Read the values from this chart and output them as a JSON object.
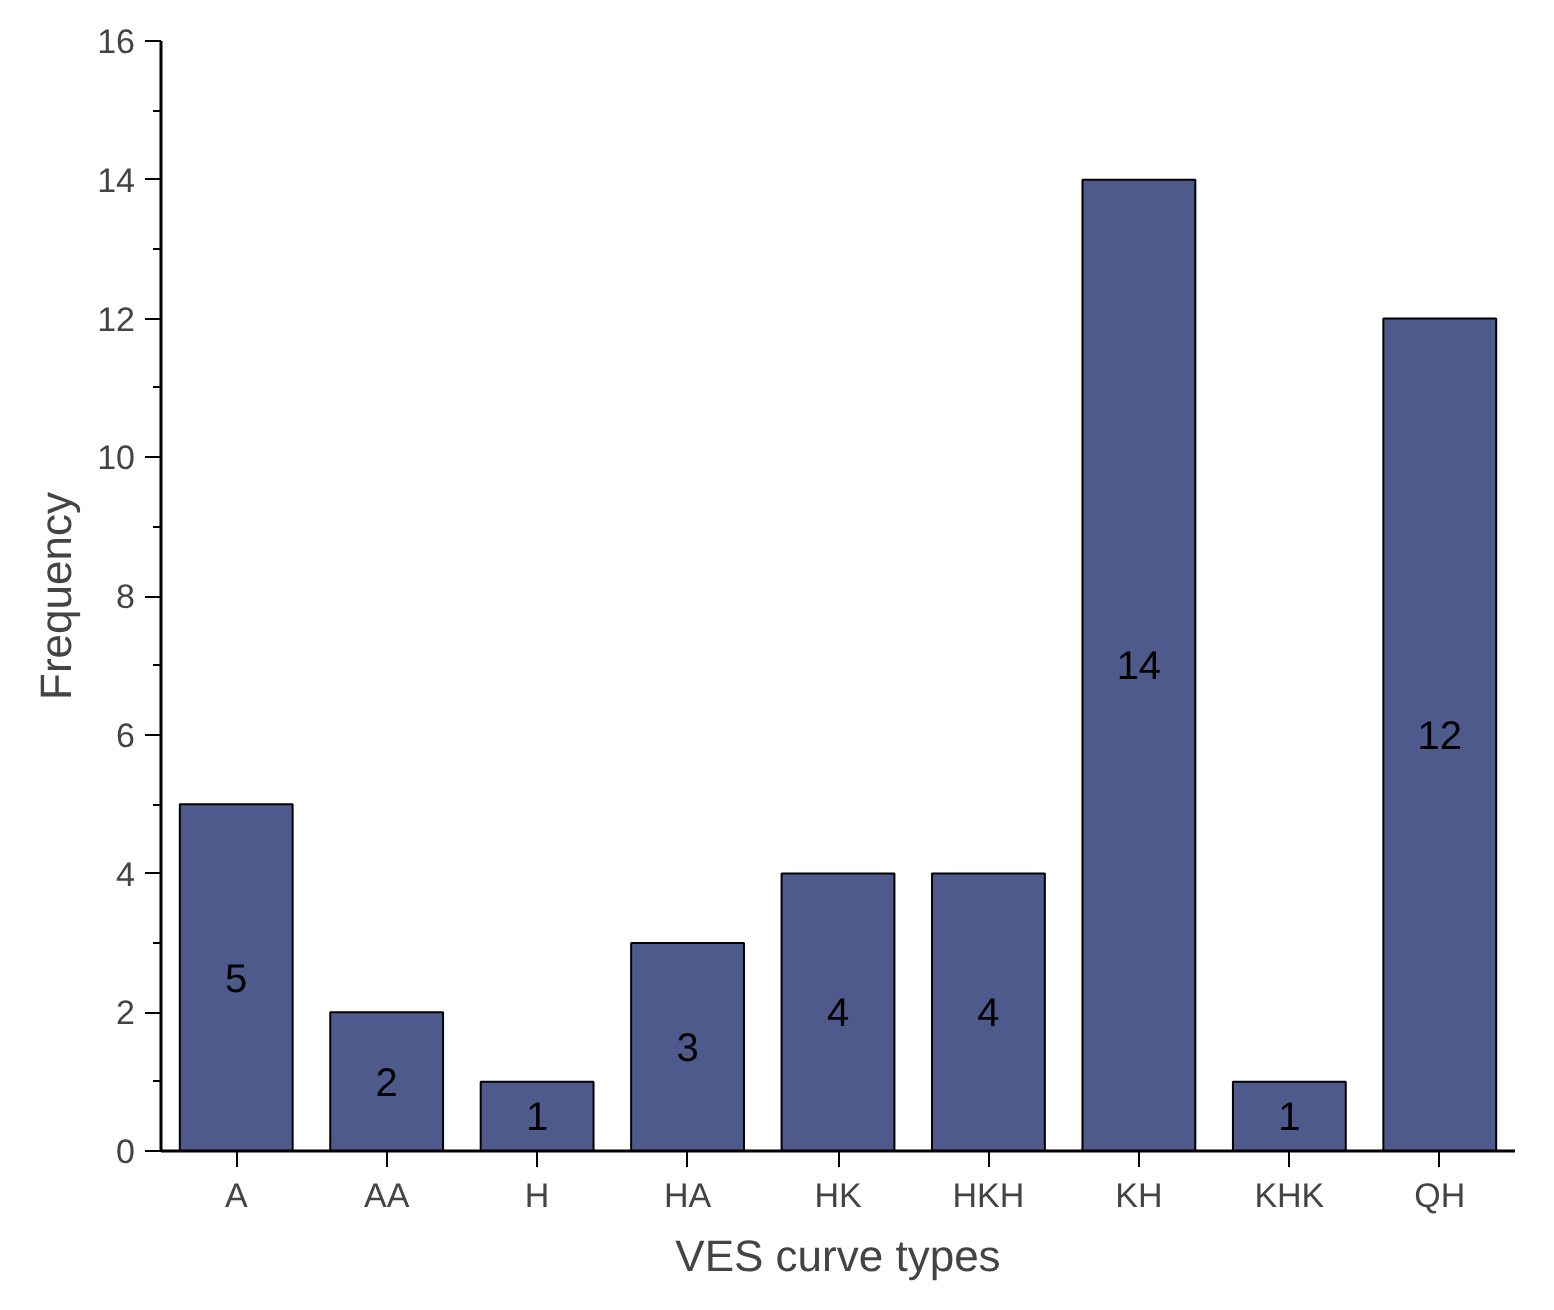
{
  "chart_data": {
    "type": "bar",
    "xlabel": "VES curve types",
    "ylabel": "Frequency",
    "categories": [
      "A",
      "AA",
      "H",
      "HA",
      "HK",
      "HKH",
      "KH",
      "KHK",
      "QH"
    ],
    "values": [
      5,
      2,
      1,
      3,
      4,
      4,
      14,
      1,
      12
    ],
    "color": "#4f5a8c",
    "ylim": [
      0,
      16
    ],
    "yticks": [
      0,
      2,
      4,
      6,
      8,
      10,
      12,
      14,
      16
    ],
    "data_labels": true,
    "grid": false
  }
}
